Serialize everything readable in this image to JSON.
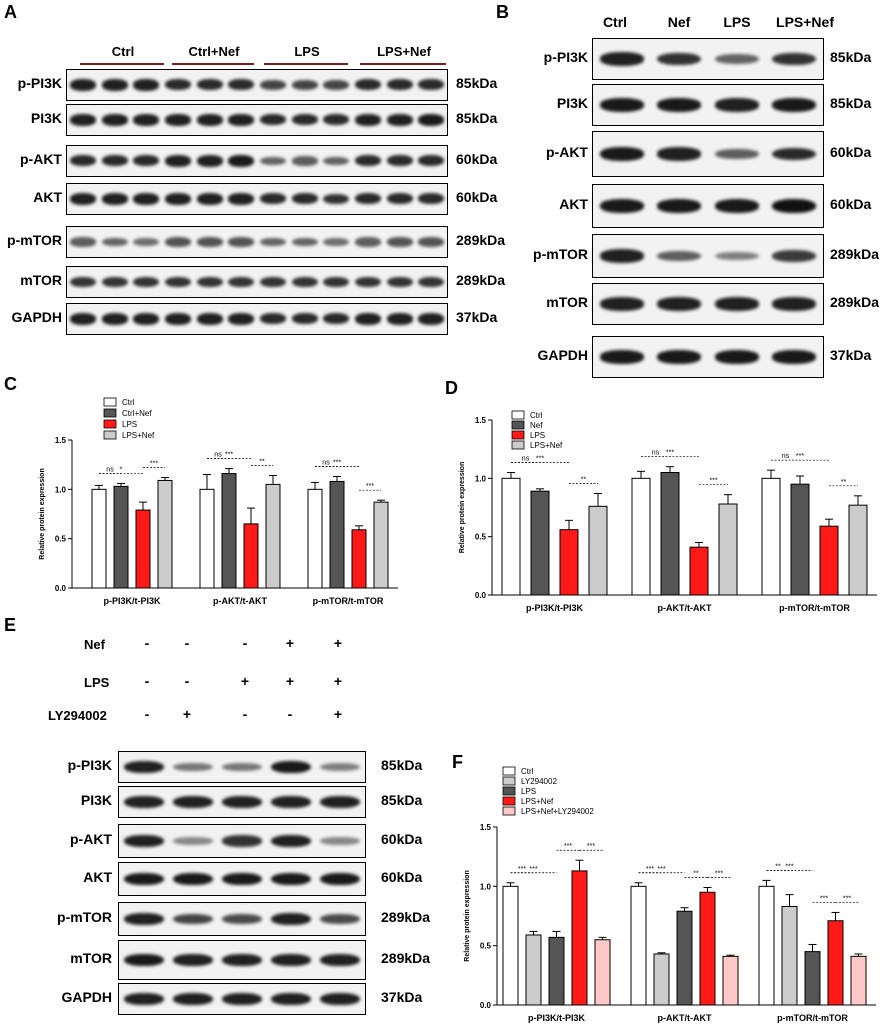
{
  "panel_labels": {
    "A": "A",
    "B": "B",
    "C": "C",
    "D": "D",
    "E": "E",
    "F": "F"
  },
  "panelA": {
    "groups": [
      "Ctrl",
      "Ctrl+Nef",
      "LPS",
      "LPS+Nef"
    ],
    "rows": [
      {
        "name": "p-PI3K",
        "kda": "85kDa",
        "int": [
          0.9,
          0.9,
          0.9,
          0.85,
          0.85,
          0.85,
          0.7,
          0.7,
          0.7,
          0.85,
          0.85,
          0.85
        ]
      },
      {
        "name": "PI3K",
        "kda": "85kDa",
        "int": [
          0.9,
          0.9,
          0.9,
          0.9,
          0.9,
          0.9,
          0.85,
          0.85,
          0.85,
          0.9,
          0.9,
          0.95
        ]
      },
      {
        "name": "p-AKT",
        "kda": "60kDa",
        "int": [
          0.85,
          0.85,
          0.85,
          0.9,
          0.9,
          0.95,
          0.5,
          0.55,
          0.5,
          0.85,
          0.85,
          0.85
        ]
      },
      {
        "name": "AKT",
        "kda": "60kDa",
        "int": [
          0.9,
          0.9,
          0.9,
          0.9,
          0.9,
          0.9,
          0.85,
          0.85,
          0.8,
          0.85,
          0.85,
          0.85
        ]
      },
      {
        "name": "p-mTOR",
        "kda": "289kDa",
        "int": [
          0.55,
          0.5,
          0.45,
          0.6,
          0.6,
          0.6,
          0.5,
          0.5,
          0.45,
          0.55,
          0.6,
          0.6
        ]
      },
      {
        "name": "mTOR",
        "kda": "289kDa",
        "int": [
          0.8,
          0.8,
          0.8,
          0.8,
          0.8,
          0.8,
          0.8,
          0.8,
          0.8,
          0.8,
          0.8,
          0.8
        ]
      },
      {
        "name": "GAPDH",
        "kda": "37kDa",
        "int": [
          0.9,
          0.9,
          0.9,
          0.9,
          0.9,
          0.9,
          0.85,
          0.85,
          0.85,
          0.9,
          0.9,
          0.9
        ]
      }
    ]
  },
  "panelB": {
    "lanes": [
      "Ctrl",
      "Nef",
      "LPS",
      "LPS+Nef"
    ],
    "rows": [
      {
        "name": "p-PI3K",
        "kda": "85kDa",
        "int": [
          0.9,
          0.8,
          0.5,
          0.8
        ]
      },
      {
        "name": "PI3K",
        "kda": "85kDa",
        "int": [
          0.95,
          0.95,
          0.9,
          0.95
        ]
      },
      {
        "name": "p-AKT",
        "kda": "60kDa",
        "int": [
          0.95,
          0.9,
          0.55,
          0.85
        ]
      },
      {
        "name": "AKT",
        "kda": "60kDa",
        "int": [
          0.95,
          0.95,
          0.95,
          1.0
        ]
      },
      {
        "name": "p-mTOR",
        "kda": "289kDa",
        "int": [
          0.9,
          0.55,
          0.35,
          0.75
        ]
      },
      {
        "name": "mTOR",
        "kda": "289kDa",
        "int": [
          0.9,
          0.9,
          0.9,
          0.9
        ]
      },
      {
        "name": "GAPDH",
        "kda": "37kDa",
        "int": [
          0.95,
          0.95,
          0.95,
          0.95
        ]
      }
    ]
  },
  "panelE": {
    "conditions": [
      {
        "name": "Nef",
        "signs": [
          "-",
          "-",
          "-",
          "+",
          "+"
        ]
      },
      {
        "name": "LPS",
        "signs": [
          "-",
          "-",
          "+",
          "+",
          "+"
        ]
      },
      {
        "name": "LY294002",
        "signs": [
          "-",
          "+",
          "-",
          "-",
          "+"
        ]
      }
    ],
    "rows": [
      {
        "name": "p-PI3K",
        "kda": "85kDa",
        "int": [
          0.9,
          0.4,
          0.4,
          0.95,
          0.35
        ]
      },
      {
        "name": "PI3K",
        "kda": "85kDa",
        "int": [
          0.9,
          0.9,
          0.9,
          0.9,
          0.9
        ]
      },
      {
        "name": "p-AKT",
        "kda": "60kDa",
        "int": [
          0.9,
          0.3,
          0.8,
          0.9,
          0.3
        ]
      },
      {
        "name": "AKT",
        "kda": "60kDa",
        "int": [
          0.95,
          0.95,
          0.95,
          0.95,
          0.95
        ]
      },
      {
        "name": "p-mTOR",
        "kda": "289kDa",
        "int": [
          0.9,
          0.7,
          0.65,
          0.9,
          0.65
        ]
      },
      {
        "name": "mTOR",
        "kda": "289kDa",
        "int": [
          0.95,
          0.9,
          0.9,
          0.9,
          0.9
        ]
      },
      {
        "name": "GAPDH",
        "kda": "37kDa",
        "int": [
          0.9,
          0.9,
          0.9,
          0.9,
          0.9
        ]
      }
    ]
  },
  "chart_data": [
    {
      "id": "C",
      "type": "bar",
      "ylabel": "Relative protein expression",
      "ylim": [
        0,
        1.5
      ],
      "yticks": [
        "0.0",
        "0.5",
        "1.0",
        "1.5"
      ],
      "categories": [
        "p-PI3K/t-PI3K",
        "p-AKT/t-AKT",
        "p-mTOR/t-mTOR"
      ],
      "series": [
        {
          "name": "Ctrl",
          "color": "#ffffff",
          "values": [
            1.0,
            1.0,
            1.0
          ],
          "err": [
            0.04,
            0.15,
            0.07
          ]
        },
        {
          "name": "Ctrl+Nef",
          "color": "#555555",
          "values": [
            1.03,
            1.16,
            1.08
          ],
          "err": [
            0.03,
            0.05,
            0.05
          ]
        },
        {
          "name": "LPS",
          "color": "#ff1a1a",
          "values": [
            0.79,
            0.65,
            0.59
          ],
          "err": [
            0.08,
            0.16,
            0.04
          ]
        },
        {
          "name": "LPS+Nef",
          "color": "#cccccc",
          "values": [
            1.09,
            1.05,
            0.87
          ],
          "err": [
            0.03,
            0.09,
            0.02
          ]
        }
      ],
      "sig": [
        {
          "cat": 0,
          "from": 0,
          "to": 1,
          "label": "ns"
        },
        {
          "cat": 0,
          "from": 0,
          "to": 2,
          "label": "*"
        },
        {
          "cat": 0,
          "from": 2,
          "to": 3,
          "label": "***"
        },
        {
          "cat": 1,
          "from": 0,
          "to": 1,
          "label": "ns"
        },
        {
          "cat": 1,
          "from": 0,
          "to": 2,
          "label": "***"
        },
        {
          "cat": 1,
          "from": 2,
          "to": 3,
          "label": "**"
        },
        {
          "cat": 2,
          "from": 0,
          "to": 1,
          "label": "ns"
        },
        {
          "cat": 2,
          "from": 0,
          "to": 2,
          "label": "***"
        },
        {
          "cat": 2,
          "from": 2,
          "to": 3,
          "label": "***"
        }
      ]
    },
    {
      "id": "D",
      "type": "bar",
      "ylabel": "Relative protein expression",
      "ylim": [
        0,
        1.5
      ],
      "yticks": [
        "0.0",
        "0.5",
        "1.0",
        "1.5"
      ],
      "categories": [
        "p-PI3K/t-PI3K",
        "p-AKT/t-AKT",
        "p-mTOR/t-mTOR"
      ],
      "series": [
        {
          "name": "Ctrl",
          "color": "#ffffff",
          "values": [
            1.0,
            1.0,
            1.0
          ],
          "err": [
            0.05,
            0.06,
            0.07
          ]
        },
        {
          "name": "Nef",
          "color": "#555555",
          "values": [
            0.89,
            1.05,
            0.95
          ],
          "err": [
            0.02,
            0.05,
            0.07
          ]
        },
        {
          "name": "LPS",
          "color": "#ff1a1a",
          "values": [
            0.56,
            0.41,
            0.59
          ],
          "err": [
            0.08,
            0.04,
            0.06
          ]
        },
        {
          "name": "LPS+Nef",
          "color": "#cccccc",
          "values": [
            0.76,
            0.78,
            0.77
          ],
          "err": [
            0.11,
            0.08,
            0.08
          ]
        }
      ],
      "sig": [
        {
          "cat": 0,
          "from": 0,
          "to": 1,
          "label": "ns"
        },
        {
          "cat": 0,
          "from": 0,
          "to": 2,
          "label": "***"
        },
        {
          "cat": 0,
          "from": 2,
          "to": 3,
          "label": "**"
        },
        {
          "cat": 1,
          "from": 0,
          "to": 1,
          "label": "ns"
        },
        {
          "cat": 1,
          "from": 0,
          "to": 2,
          "label": "***"
        },
        {
          "cat": 1,
          "from": 2,
          "to": 3,
          "label": "***"
        },
        {
          "cat": 2,
          "from": 0,
          "to": 1,
          "label": "ns"
        },
        {
          "cat": 2,
          "from": 0,
          "to": 2,
          "label": "***"
        },
        {
          "cat": 2,
          "from": 2,
          "to": 3,
          "label": "**"
        }
      ]
    },
    {
      "id": "F",
      "type": "bar",
      "ylabel": "Relative protein expression",
      "ylim": [
        0,
        1.5
      ],
      "yticks": [
        "0.0",
        "0.5",
        "1.0",
        "1.5"
      ],
      "categories": [
        "p-PI3K/t-PI3K",
        "p-AKT/t-AKT",
        "p-mTOR/t-mTOR"
      ],
      "series": [
        {
          "name": "Ctrl",
          "color": "#ffffff",
          "values": [
            1.0,
            1.0,
            1.0
          ],
          "err": [
            0.03,
            0.03,
            0.05
          ]
        },
        {
          "name": "LY294002",
          "color": "#cccccc",
          "values": [
            0.59,
            0.43,
            0.83
          ],
          "err": [
            0.03,
            0.01,
            0.1
          ]
        },
        {
          "name": "LPS",
          "color": "#555555",
          "values": [
            0.57,
            0.79,
            0.45
          ],
          "err": [
            0.05,
            0.03,
            0.06
          ]
        },
        {
          "name": "LPS+Nef",
          "color": "#ff1a1a",
          "values": [
            1.13,
            0.95,
            0.71
          ],
          "err": [
            0.09,
            0.04,
            0.07
          ]
        },
        {
          "name": "LPS+Nef+LY294002",
          "color": "#ffc8c8",
          "values": [
            0.55,
            0.41,
            0.41
          ],
          "err": [
            0.02,
            0.01,
            0.02
          ]
        }
      ],
      "sig": [
        {
          "cat": 0,
          "from": 0,
          "to": 1,
          "label": "***"
        },
        {
          "cat": 0,
          "from": 0,
          "to": 2,
          "label": "***"
        },
        {
          "cat": 0,
          "from": 2,
          "to": 3,
          "label": "***"
        },
        {
          "cat": 0,
          "from": 3,
          "to": 4,
          "label": "***"
        },
        {
          "cat": 1,
          "from": 0,
          "to": 1,
          "label": "***"
        },
        {
          "cat": 1,
          "from": 0,
          "to": 2,
          "label": "***"
        },
        {
          "cat": 1,
          "from": 2,
          "to": 3,
          "label": "**"
        },
        {
          "cat": 1,
          "from": 3,
          "to": 4,
          "label": "***"
        },
        {
          "cat": 2,
          "from": 0,
          "to": 1,
          "label": "**"
        },
        {
          "cat": 2,
          "from": 0,
          "to": 2,
          "label": "***"
        },
        {
          "cat": 2,
          "from": 2,
          "to": 3,
          "label": "***"
        },
        {
          "cat": 2,
          "from": 3,
          "to": 4,
          "label": "***"
        }
      ]
    }
  ]
}
